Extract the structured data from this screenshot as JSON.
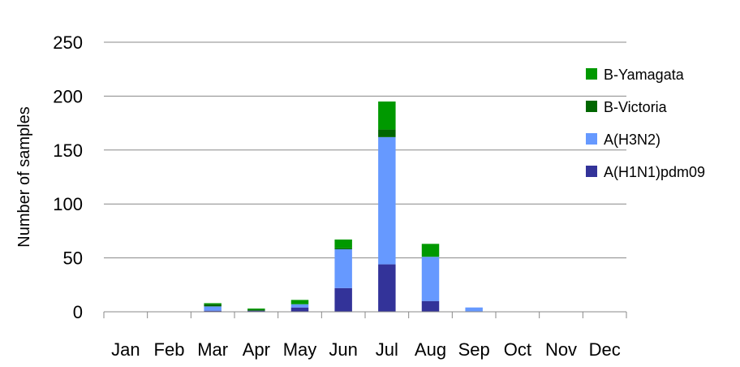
{
  "chart_data": {
    "type": "bar",
    "stacked": true,
    "categories": [
      "Jan",
      "Feb",
      "Mar",
      "Apr",
      "May",
      "Jun",
      "Jul",
      "Aug",
      "Sep",
      "Oct",
      "Nov",
      "Dec"
    ],
    "series": [
      {
        "name": "A(H1N1)pdm09",
        "color": "#333399",
        "values": [
          0,
          0,
          1,
          1,
          4,
          22,
          44,
          10,
          0,
          0,
          0,
          0
        ]
      },
      {
        "name": "A(H3N2)",
        "color": "#6699ff",
        "values": [
          0,
          0,
          4,
          0,
          3,
          36,
          118,
          41,
          4,
          0,
          0,
          0
        ]
      },
      {
        "name": "B-Victoria",
        "color": "#006600",
        "values": [
          0,
          0,
          2,
          1,
          0,
          1,
          7,
          0,
          0,
          0,
          0,
          0
        ]
      },
      {
        "name": "B-Yamagata",
        "color": "#009900",
        "values": [
          0,
          0,
          1,
          1,
          4,
          8,
          26,
          12,
          0,
          0,
          0,
          0
        ]
      }
    ],
    "ylabel": "Number of samples",
    "ylim": [
      0,
      250
    ],
    "yticks": [
      0,
      50,
      100,
      150,
      200,
      250
    ],
    "grid": true,
    "legend": "right",
    "legend_order": [
      "B-Yamagata",
      "B-Victoria",
      "A(H3N2)",
      "A(H1N1)pdm09"
    ]
  }
}
